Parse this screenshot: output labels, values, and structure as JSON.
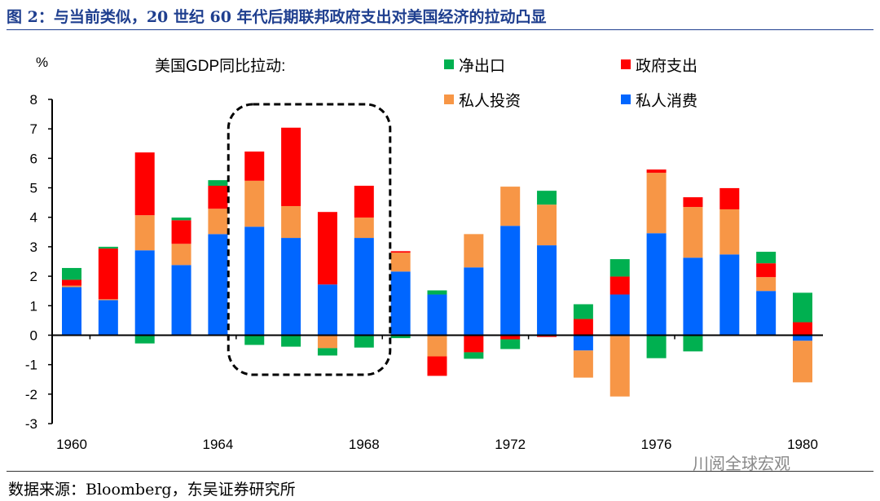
{
  "title": "图 2：与当前类似，20 世纪 60 年代后期联邦政府支出对美国经济的拉动凸显",
  "source": "数据来源：Bloomberg，东吴证券研究所",
  "watermark": "川阅全球宏观",
  "chart_data": {
    "type": "bar",
    "stacked": true,
    "ylabel": "%",
    "legend_title": "美国GDP同比拉动:",
    "legend_position": "top",
    "ylim": [
      -3,
      8
    ],
    "yticks": [
      "-3",
      "-2",
      "-1",
      "0",
      "1",
      "2",
      "3",
      "4",
      "5",
      "6",
      "7",
      "8"
    ],
    "xtick_labels": [
      "1960",
      "1964",
      "1968",
      "1972",
      "1976",
      "1980"
    ],
    "grid": false,
    "categories": [
      "1960",
      "1961",
      "1962",
      "1963",
      "1964",
      "1965",
      "1966",
      "1967",
      "1968",
      "1969",
      "1970",
      "1971",
      "1972",
      "1973",
      "1974",
      "1975",
      "1976",
      "1977",
      "1978",
      "1979",
      "1980"
    ],
    "series": [
      {
        "name": "私人消费",
        "color": "#0066ff",
        "values": [
          1.63,
          1.19,
          2.88,
          2.38,
          3.43,
          3.68,
          3.3,
          1.72,
          3.3,
          2.16,
          1.38,
          2.3,
          3.71,
          3.05,
          -0.52,
          1.38,
          3.46,
          2.63,
          2.74,
          1.5,
          -0.19
        ]
      },
      {
        "name": "私人投资",
        "color": "#f79646",
        "values": [
          0.05,
          0.03,
          1.19,
          0.72,
          0.86,
          1.56,
          1.08,
          -0.44,
          0.69,
          0.64,
          -0.72,
          1.13,
          1.33,
          1.38,
          -0.92,
          -2.08,
          2.05,
          1.72,
          1.53,
          0.47,
          -1.41
        ]
      },
      {
        "name": "政府支出",
        "color": "#ff0000",
        "values": [
          0.2,
          1.72,
          2.13,
          0.8,
          0.78,
          0.99,
          2.66,
          2.46,
          1.08,
          0.05,
          -0.66,
          -0.58,
          -0.14,
          -0.06,
          0.55,
          0.61,
          0.11,
          0.33,
          0.72,
          0.47,
          0.44
        ]
      },
      {
        "name": "净出口",
        "color": "#00b050",
        "values": [
          0.4,
          0.06,
          -0.28,
          0.09,
          0.19,
          -0.33,
          -0.39,
          -0.25,
          -0.42,
          -0.1,
          0.14,
          -0.22,
          -0.33,
          0.47,
          0.5,
          0.59,
          -0.78,
          -0.55,
          -0.02,
          0.39,
          1.0
        ]
      }
    ],
    "legend_order": [
      3,
      2,
      1,
      0
    ],
    "highlight": {
      "from": "1965",
      "to": "1968",
      "style": "dashed-rounded-box"
    }
  }
}
